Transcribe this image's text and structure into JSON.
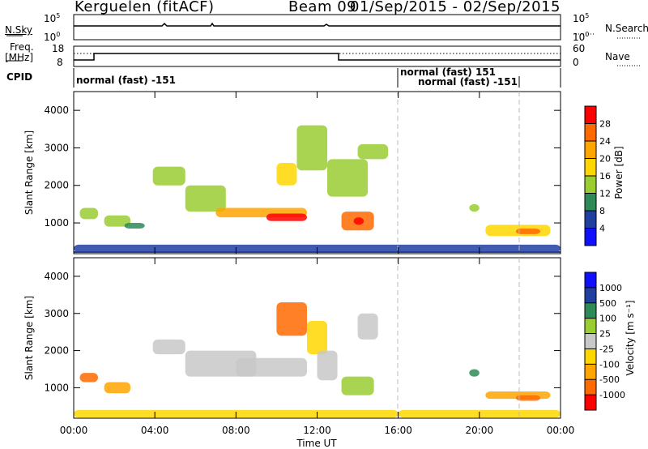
{
  "header": {
    "station": "Kerguelen (fitACF)",
    "beam": "Beam 09",
    "daterange": "01/Sep/2015 - 02/Sep/2015"
  },
  "nsky": {
    "label": "N.Sky",
    "ytop": "10^5",
    "ybot": "10^0",
    "right_label": "N.Search",
    "right_ytop": "10^5",
    "right_ybot": "10^0"
  },
  "freq": {
    "label_line1": "Freq.",
    "label_line2": "[MHz]",
    "ytop": "18",
    "ybot": "8",
    "right_label": "Nave",
    "right_ytop": "60",
    "right_ybot": "0"
  },
  "cpid": {
    "label": "CPID",
    "segments": [
      {
        "text": "normal (fast) -151"
      },
      {
        "text": "normal (fast) 151"
      },
      {
        "text": "normal (fast) -151"
      }
    ]
  },
  "colors": {
    "power": [
      "#1010ff",
      "#2040a0",
      "#2e8b57",
      "#9acd32",
      "#ffd700",
      "#ffa500",
      "#ff6a00",
      "#ff0000"
    ],
    "velocity": [
      "#ff0000",
      "#ff6a00",
      "#ffa500",
      "#ffd700",
      "#c8c8c8",
      "#9acd32",
      "#2e8b57",
      "#2040a0",
      "#1010ff"
    ]
  },
  "chart_data": [
    {
      "type": "heatmap",
      "name": "power",
      "ylabel": "Slant Range [km]",
      "yticks": [
        "1000",
        "2000",
        "3000",
        "4000"
      ],
      "ylim": [
        180,
        4500
      ],
      "colorbar_label": "Power [dB]",
      "colorbar_ticks": [
        "4",
        "8",
        "12",
        "16",
        "20",
        "24",
        "28"
      ],
      "colorbar_range": [
        0,
        32
      ]
    },
    {
      "type": "heatmap",
      "name": "velocity",
      "ylabel": "Slant Range [km]",
      "yticks": [
        "1000",
        "2000",
        "3000",
        "4000"
      ],
      "ylim": [
        180,
        4500
      ],
      "colorbar_label": "Velocity [m s⁻¹]",
      "colorbar_ticks": [
        "-1000",
        "-500",
        "-100",
        "-25",
        "25",
        "100",
        "500",
        "1000"
      ]
    }
  ],
  "xaxis": {
    "label": "Time UT",
    "ticks": [
      "00:00",
      "04:00",
      "08:00",
      "12:00",
      "16:00",
      "20:00",
      "00:00"
    ]
  }
}
